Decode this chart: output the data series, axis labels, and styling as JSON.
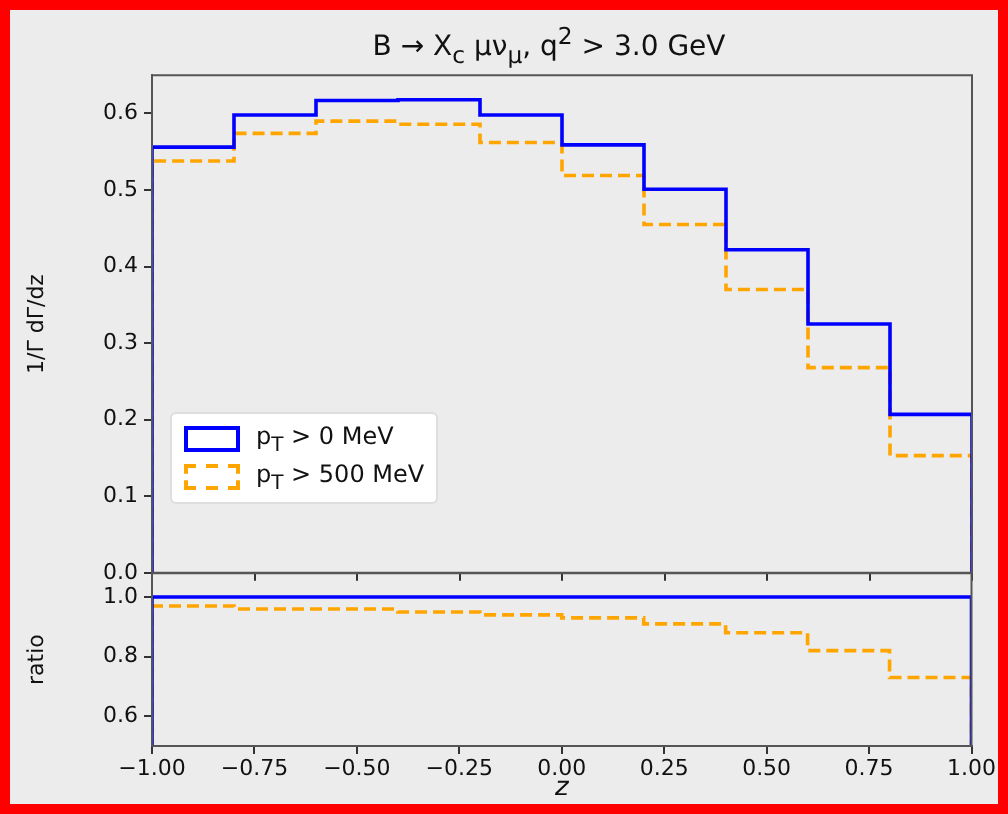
{
  "chart_data": [
    {
      "type": "histogram",
      "title": "B → X$_{c}$ μν$_{μ}$,  q$^{2}$ > 3.0 GeV",
      "ylabel": "1/Γ dΓ/dz",
      "bins": [
        -1,
        -0.8,
        -0.6,
        -0.4,
        -0.2,
        0,
        0.2,
        0.4,
        0.6,
        0.8,
        1
      ],
      "series": [
        {
          "name": "p$_{T}$ > 0 MeV",
          "color": "#0000ff",
          "line_style": "solid",
          "values": [
            0.556,
            0.598,
            0.617,
            0.618,
            0.598,
            0.559,
            0.501,
            0.422,
            0.325,
            0.207
          ]
        },
        {
          "name": "p$_{T}$ > 500 MeV",
          "color": "#ffa500",
          "line_style": "dashed",
          "values": [
            0.538,
            0.574,
            0.59,
            0.586,
            0.562,
            0.519,
            0.455,
            0.37,
            0.268,
            0.153
          ]
        }
      ],
      "xlim": [
        -1,
        1
      ],
      "xticks": [
        {
          "value": -1,
          "label": null
        },
        {
          "value": -0.75,
          "label": null
        },
        {
          "value": -0.5,
          "label": null
        },
        {
          "value": -0.25,
          "label": null
        },
        {
          "value": 0,
          "label": null
        },
        {
          "value": 0.25,
          "label": null
        },
        {
          "value": 0.5,
          "label": null
        },
        {
          "value": 0.75,
          "label": null
        },
        {
          "value": 1,
          "label": null
        }
      ],
      "ylim": [
        0,
        0.65
      ],
      "yticks": [
        {
          "value": 0,
          "label": "0.0"
        },
        0.1,
        0.2,
        0.3,
        0.4,
        0.5,
        0.6
      ],
      "legend": "bottom left",
      "tick_labels": "y"
    },
    {
      "type": "histogram",
      "ylabel": "ratio",
      "xlabel": "z",
      "bins": [
        -1,
        -0.8,
        -0.6,
        -0.4,
        -0.2,
        0,
        0.2,
        0.4,
        0.6,
        0.8,
        1
      ],
      "series": [
        {
          "color": "#0000ff",
          "line_style": "solid",
          "values": [
            1,
            1,
            1,
            1,
            1,
            1,
            1,
            1,
            1,
            1
          ]
        },
        {
          "color": "#ffa500",
          "line_style": "dashed",
          "values": [
            0.97,
            0.96,
            0.96,
            0.95,
            0.94,
            0.93,
            0.91,
            0.88,
            0.82,
            0.73
          ]
        }
      ],
      "xlim": [
        -1,
        1
      ],
      "xticks": [
        {
          "value": -1,
          "label": "−1.00"
        },
        {
          "value": -0.75,
          "label": "−0.75"
        },
        {
          "value": -0.5,
          "label": "−0.50"
        },
        {
          "value": -0.25,
          "label": "−0.25"
        },
        {
          "value": 0,
          "label": "0.00"
        },
        {
          "value": 0.25,
          "label": "0.25"
        },
        {
          "value": 0.5,
          "label": "0.50"
        },
        {
          "value": 0.75,
          "label": "0.75"
        },
        {
          "value": 1,
          "label": "1.00"
        }
      ],
      "ylim": [
        0.5,
        1.08
      ],
      "yticks": [
        0.6,
        0.8,
        {
          "value": 1,
          "label": "1.0"
        }
      ]
    }
  ]
}
